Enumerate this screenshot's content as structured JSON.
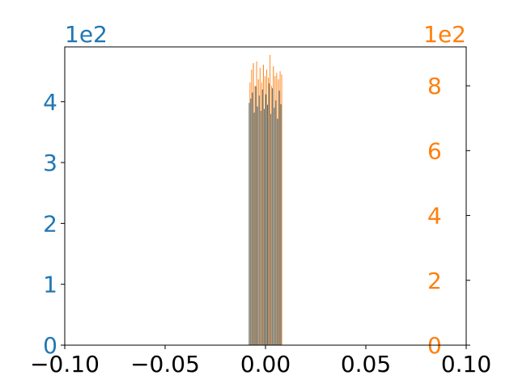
{
  "chart_data": {
    "type": "bar",
    "title": "",
    "xlabel": "",
    "ylabel": "",
    "colors": {
      "left": "#1f77b4",
      "right": "#ff7f0e",
      "axis": "#000000",
      "background": "#ffffff"
    },
    "x_axis": {
      "range": [
        -0.1,
        0.1
      ],
      "ticks": [
        -0.1,
        -0.05,
        0.0,
        0.05,
        0.1
      ],
      "tick_labels": [
        "−0.10",
        "−0.05",
        "0.00",
        "0.05",
        "0.10"
      ]
    },
    "y_left": {
      "range": [
        0,
        4.9
      ],
      "ticks": [
        0,
        1,
        2,
        3,
        4
      ],
      "tick_labels": [
        "0",
        "1",
        "2",
        "3",
        "4"
      ],
      "offset_text": "1e2"
    },
    "y_right": {
      "range": [
        0,
        9.2
      ],
      "ticks": [
        0,
        2,
        4,
        6,
        8
      ],
      "tick_labels": [
        "0",
        "2",
        "4",
        "6",
        "8"
      ],
      "offset_text": "1e2"
    },
    "bin_edges": [
      -0.0083,
      -0.0075,
      -0.0067,
      -0.0058,
      -0.005,
      -0.0042,
      -0.0033,
      -0.0025,
      -0.0017,
      -0.0008,
      0.0,
      0.0008,
      0.0017,
      0.0025,
      0.0033,
      0.0042,
      0.005,
      0.0058,
      0.0067,
      0.0075,
      0.0083
    ],
    "series": [
      {
        "axis": "left",
        "values": [
          3.98,
          4.05,
          4.15,
          3.82,
          4.25,
          3.92,
          4.1,
          3.85,
          4.2,
          3.88,
          4.12,
          3.95,
          4.3,
          3.8,
          4.22,
          3.9,
          4.02,
          3.72,
          4.18,
          3.96
        ]
      },
      {
        "axis": "right",
        "values": [
          8.1,
          8.5,
          8.7,
          8.0,
          8.75,
          8.2,
          8.55,
          8.1,
          8.65,
          8.3,
          8.5,
          8.25,
          8.95,
          8.0,
          8.6,
          8.3,
          8.4,
          8.2,
          8.45,
          8.35
        ]
      }
    ]
  }
}
